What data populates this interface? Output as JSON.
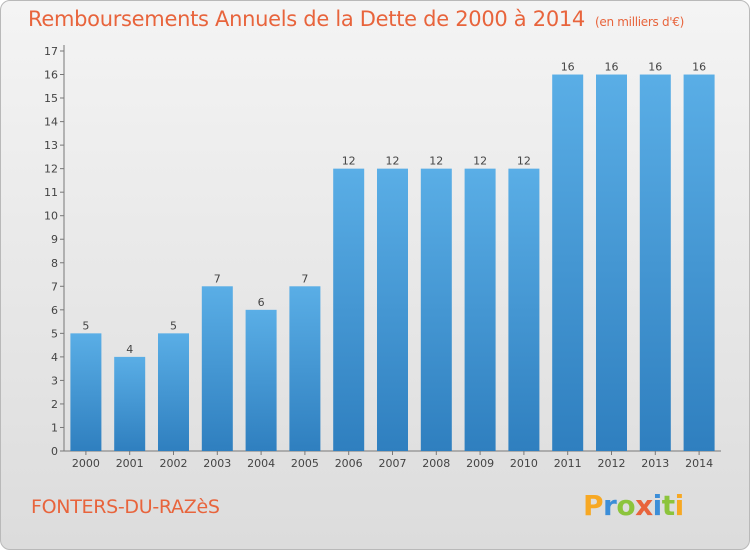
{
  "chart_data": {
    "type": "bar",
    "title": "Remboursements Annuels de la Dette de 2000 à 2014",
    "unit": "(en milliers d'€)",
    "categories": [
      "2000",
      "2001",
      "2002",
      "2003",
      "2004",
      "2005",
      "2006",
      "2007",
      "2008",
      "2009",
      "2010",
      "2011",
      "2012",
      "2013",
      "2014"
    ],
    "values": [
      5,
      4,
      5,
      7,
      6,
      7,
      12,
      12,
      12,
      12,
      12,
      16,
      16,
      16,
      16
    ],
    "ylim": [
      0,
      17
    ],
    "yticks": [
      0,
      1,
      2,
      3,
      4,
      5,
      6,
      7,
      8,
      9,
      10,
      11,
      12,
      13,
      14,
      15,
      16,
      17
    ],
    "grid": false,
    "xlabel": "",
    "ylabel": "",
    "bar_color": "#4aa0dc"
  },
  "footer": {
    "commune": "FONTERS-DU-RAZèS",
    "logo_letters": [
      "P",
      "r",
      "o",
      "x",
      "i",
      "t",
      "i"
    ],
    "logo_colors": [
      "#f7a823",
      "#3c8ed8",
      "#8cc43c",
      "#e8643c",
      "#3c8ed8",
      "#8cc43c",
      "#f7a823"
    ]
  }
}
